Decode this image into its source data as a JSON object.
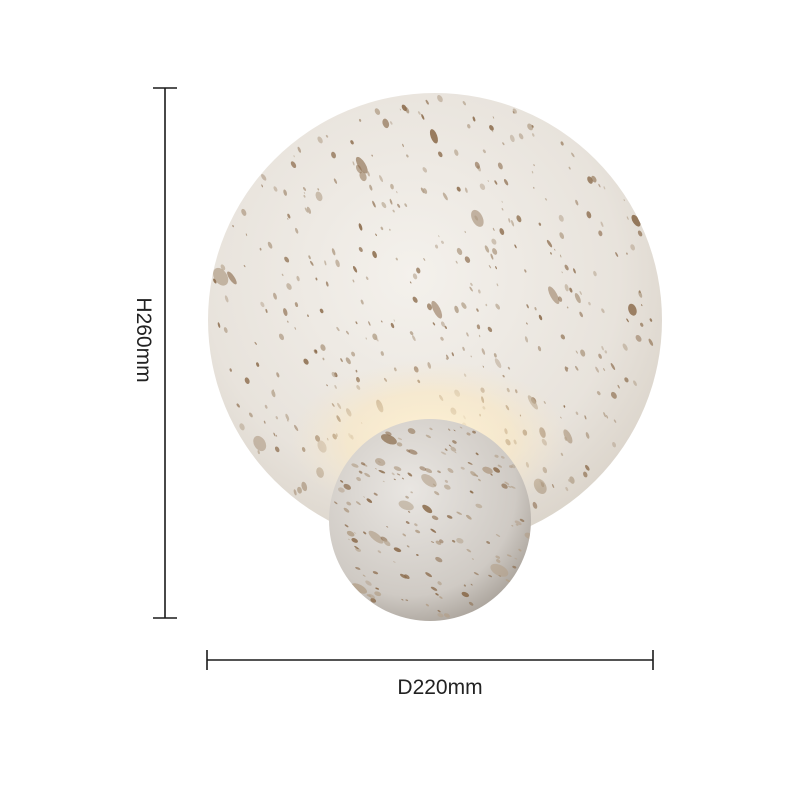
{
  "dimensions": {
    "height_label": "H260mm",
    "diameter_label": "D220mm"
  },
  "colors": {
    "line": "#1a1a1a",
    "stone": "#ece8e2",
    "pores": "#8a6a4a",
    "glow": "#fff3d6"
  }
}
